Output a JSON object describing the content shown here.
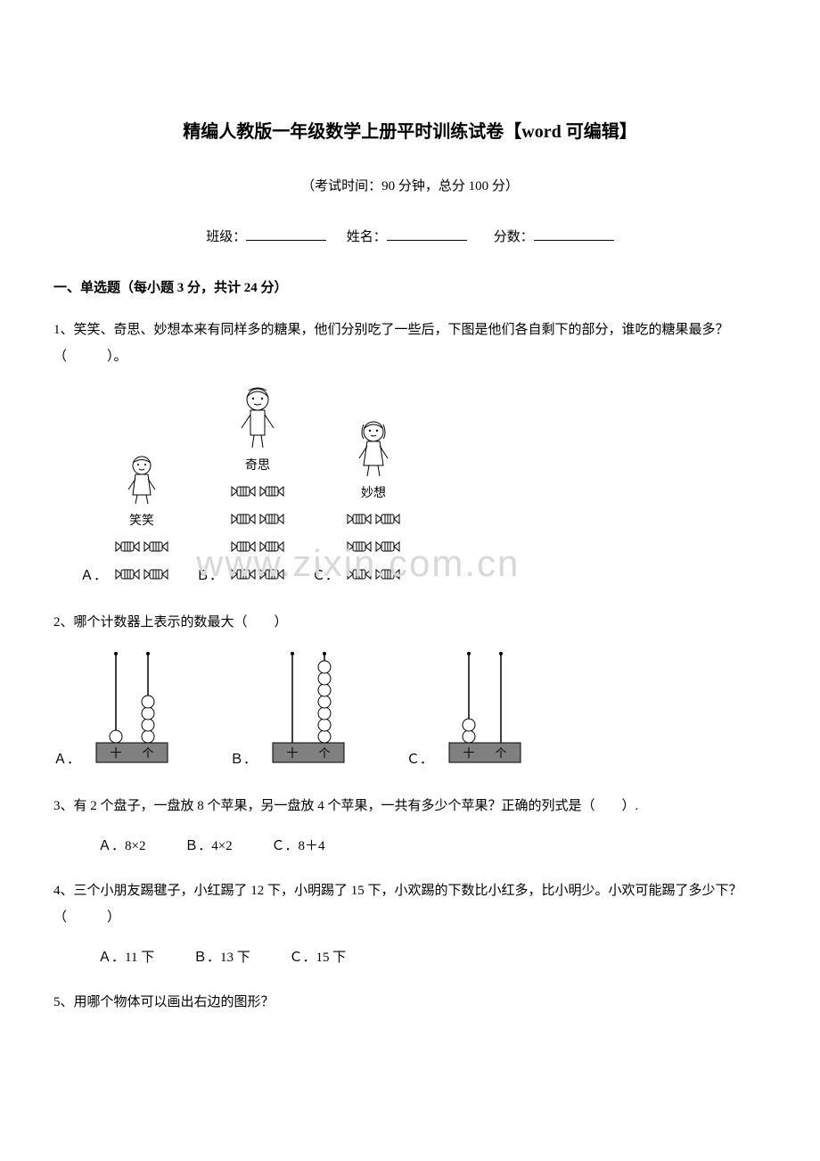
{
  "title": "精编人教版一年级数学上册平时训练试卷【word 可编辑】",
  "exam_info": "（考试时间：90 分钟，总分 100 分）",
  "student_labels": {
    "class": "班级：",
    "name": "姓名：",
    "score": "分数："
  },
  "section1_header": "一、单选题（每小题 3 分，共计 24 分）",
  "q1": {
    "text": "1、笑笑、奇思、妙想本来有同样多的糖果，他们分别吃了一些后，下图是他们各自剩下的部分，谁吃的糖果最多？（　　　）。",
    "names": {
      "a": "笑笑",
      "b": "奇思",
      "c": "妙想"
    },
    "labels": {
      "a": "Ａ．",
      "b": "Ｂ．",
      "c": "Ｃ．"
    },
    "candy_counts": {
      "a": [
        2,
        2
      ],
      "b": [
        2,
        2,
        2,
        2
      ],
      "c": [
        2,
        2,
        2
      ]
    }
  },
  "q2": {
    "text": "2、哪个计数器上表示的数最大（　　）",
    "labels": {
      "a": "Ａ．",
      "b": "Ｂ．",
      "c": "Ｃ．"
    },
    "beads": {
      "a": {
        "tens": 1,
        "ones": 4
      },
      "b": {
        "tens": 0,
        "ones": 7
      },
      "c": {
        "tens": 2,
        "ones": 0
      }
    },
    "place_labels": {
      "tens": "十",
      "ones": "个"
    }
  },
  "q3": {
    "text": "3、有 2 个盘子，一盘放 8 个苹果，另一盘放 4 个苹果，一共有多少个苹果？正确的列式是（　　）.",
    "options": {
      "a": "Ａ．8×2",
      "b": "Ｂ．4×2",
      "c": "Ｃ．8＋4"
    }
  },
  "q4": {
    "text": "4、三个小朋友踢毽子，小红踢了 12 下，小明踢了 15 下，小欢踢的下数比小红多，比小明少。小欢可能踢了多少下？（　　　）",
    "options": {
      "a": "Ａ．11 下",
      "b": "Ｂ．13 下",
      "c": "Ｃ．15 下"
    }
  },
  "q5": {
    "text": "5、用哪个物体可以画出右边的图形？"
  },
  "watermark": "www.zixin.com.cn",
  "colors": {
    "text": "#000000",
    "background": "#ffffff",
    "watermark": "#d8d8d8",
    "abacus_base": "#808080",
    "abacus_bead": "#ffffff",
    "abacus_stroke": "#000000"
  }
}
